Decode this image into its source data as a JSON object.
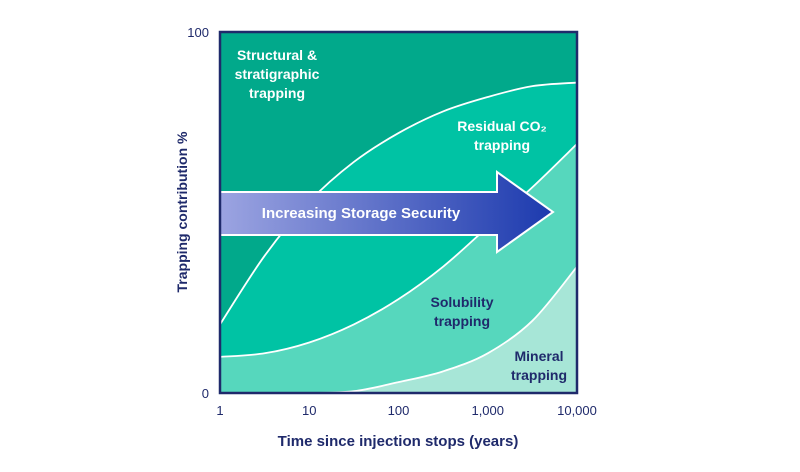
{
  "chart_data": {
    "type": "area",
    "xlabel": "Time since injection stops (years)",
    "ylabel": "Trapping contribution %",
    "x_scale": "log",
    "xlim": [
      1,
      10000
    ],
    "ylim": [
      0,
      100
    ],
    "x_ticks": [
      "1",
      "10",
      "100",
      "1,000",
      "10,000"
    ],
    "y_ticks": [
      "0",
      "100"
    ],
    "x": [
      1,
      3.16,
      10,
      31.6,
      100,
      316,
      1000,
      3162,
      10000
    ],
    "boundaries": [
      {
        "between": "Structural & stratigraphic trapping / Residual CO2 trapping",
        "values": [
          19,
          38,
          53,
          64,
          72,
          78,
          82,
          85,
          86
        ]
      },
      {
        "between": "Residual CO2 trapping / Solubility trapping",
        "values": [
          10,
          11,
          14,
          19,
          26,
          35,
          46,
          57,
          69
        ]
      },
      {
        "between": "Solubility trapping / Mineral trapping",
        "values": [
          0,
          0,
          0,
          0.5,
          3,
          6,
          11,
          20,
          35
        ]
      }
    ],
    "regions": [
      {
        "label_lines": [
          "Structural &",
          "stratigraphic",
          "trapping"
        ],
        "color": "#01a98b",
        "text_color": "#ffffff"
      },
      {
        "label_lines": [
          "Residual CO₂",
          "trapping"
        ],
        "color": "#00c3a4",
        "text_color": "#ffffff"
      },
      {
        "label_lines": [
          "Solubility",
          "trapping"
        ],
        "color": "#56d7bd",
        "text_color": "#1f2a6b"
      },
      {
        "label_lines": [
          "Mineral",
          "trapping"
        ],
        "color": "#a7e6d7",
        "text_color": "#1f2a6b"
      }
    ],
    "arrow": {
      "label": "Increasing Storage Security",
      "color_start": "#9ea6e2",
      "color_end": "#1c3aae"
    },
    "axis_color": "#1f2a6b"
  }
}
